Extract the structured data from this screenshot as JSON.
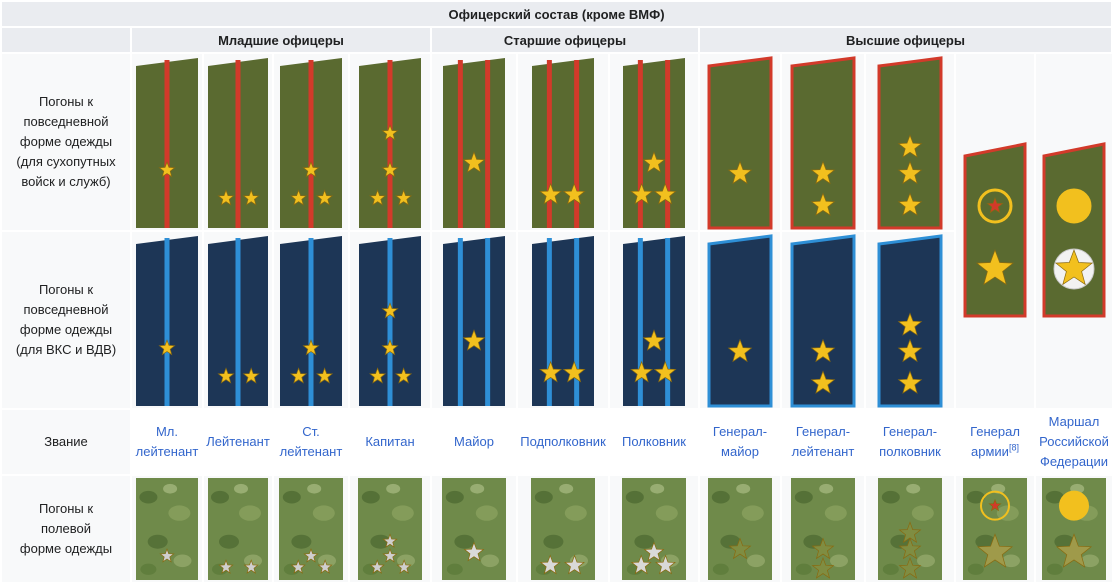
{
  "title": "Офицерский состав (кроме ВМФ)",
  "groups": [
    "Младшие офицеры",
    "Старшие офицеры",
    "Высшие офицеры"
  ],
  "row_labels": {
    "daily_ground": [
      "Погоны к",
      "повседневной",
      "форме одежды",
      "(для сухопутных",
      "войск и служб)"
    ],
    "daily_air": [
      "Погоны к",
      "повседневной",
      "форме одежды",
      "(для ВКС и ВДВ)"
    ],
    "rank": "Звание",
    "field": [
      "Погоны к",
      "полевой",
      "форме одежды"
    ]
  },
  "ranks": [
    {
      "lines": [
        "Мл.",
        "лейтенант"
      ],
      "note": ""
    },
    {
      "lines": [
        "Лейтенант"
      ],
      "note": ""
    },
    {
      "lines": [
        "Ст.",
        "лейтенант"
      ],
      "note": ""
    },
    {
      "lines": [
        "Капитан"
      ],
      "note": ""
    },
    {
      "lines": [
        "Майор"
      ],
      "note": ""
    },
    {
      "lines": [
        "Подполковник"
      ],
      "note": ""
    },
    {
      "lines": [
        "Полковник"
      ],
      "note": ""
    },
    {
      "lines": [
        "Генерал-",
        "майор"
      ],
      "note": ""
    },
    {
      "lines": [
        "Генерал-",
        "лейтенант"
      ],
      "note": ""
    },
    {
      "lines": [
        "Генерал-",
        "полковник"
      ],
      "note": ""
    },
    {
      "lines": [
        "Генерал",
        "армии"
      ],
      "note": "[8]"
    },
    {
      "lines": [
        "Маршал",
        "Российской",
        "Федерации"
      ],
      "note": ""
    }
  ],
  "colors": {
    "olive": "#5a6a30",
    "olive_dark": "#3f4a22",
    "red_stripe": "#d23a2a",
    "navy": "#1d3656",
    "blue_stripe": "#2e8fd6",
    "gold": "#f2c01e",
    "camo": "#6f8a4a",
    "link": "#3366cc",
    "header_bg": "#eaecf0"
  }
}
